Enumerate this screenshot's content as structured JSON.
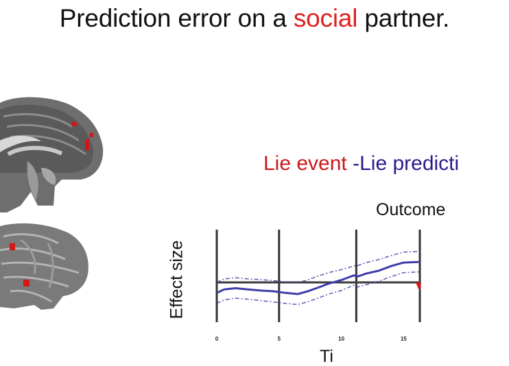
{
  "title": {
    "prefix": "Prediction error on a ",
    "accent": "social",
    "suffix": " partner."
  },
  "legend": {
    "event": "Lie event",
    "prediction": " -Lie predicti"
  },
  "colors": {
    "accent": "#e02020",
    "event": "#c81818",
    "prediction": "#2a1a8c",
    "curve": "#3c3ca8"
  },
  "chart_data": {
    "type": "line",
    "title": "",
    "ylabel": "Effect size",
    "xlabel": "Ti",
    "annotation": "Outcome",
    "x_ticks": [
      0,
      5,
      10,
      15
    ],
    "xlim": [
      0,
      16.5
    ],
    "ylim": [
      -1.5,
      1.5
    ],
    "event_lines_x": [
      0,
      5,
      11.2,
      16.3
    ],
    "series": [
      {
        "x": [
          0,
          0.6,
          1.5,
          2.5,
          3.5,
          4.5,
          5.5,
          6.5,
          7.2,
          8,
          9,
          10,
          11,
          11.3,
          12,
          13,
          14,
          15,
          16.3
        ],
        "y": [
          -0.45,
          -0.3,
          -0.25,
          -0.3,
          -0.35,
          -0.38,
          -0.45,
          -0.5,
          -0.4,
          -0.25,
          -0.05,
          0.1,
          0.3,
          0.25,
          0.38,
          0.5,
          0.7,
          0.85,
          0.88
        ]
      },
      {
        "x": [
          0,
          0.6,
          1.5,
          2.5,
          3.5,
          4.5,
          5.5,
          6.5,
          7.2,
          8,
          9,
          10,
          11,
          11.3,
          12,
          13,
          14,
          15,
          16.3
        ],
        "y": [
          0.0,
          0.15,
          0.2,
          0.15,
          0.12,
          0.08,
          0.02,
          0.0,
          0.08,
          0.25,
          0.42,
          0.55,
          0.7,
          0.72,
          0.85,
          0.98,
          1.15,
          1.3,
          1.32
        ]
      },
      {
        "x": [
          0,
          0.6,
          1.5,
          2.5,
          3.5,
          4.5,
          5.5,
          6.5,
          7.2,
          8,
          9,
          10,
          11,
          11.3,
          12,
          13,
          14,
          15,
          16.3
        ],
        "y": [
          -0.9,
          -0.75,
          -0.68,
          -0.72,
          -0.78,
          -0.84,
          -0.9,
          -0.95,
          -0.85,
          -0.7,
          -0.5,
          -0.35,
          -0.12,
          -0.2,
          -0.1,
          0.05,
          0.25,
          0.42,
          0.45
        ]
      }
    ]
  }
}
